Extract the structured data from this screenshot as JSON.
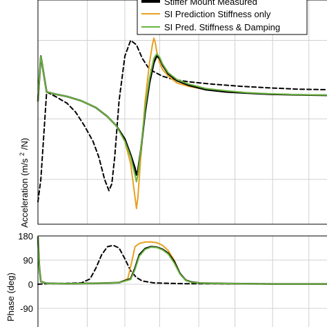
{
  "chart_data": [
    {
      "type": "line",
      "title": "",
      "xlabel": "",
      "ylabel": "Acceleration (m/s²/N)",
      "ylabel_top": "(m/s",
      "ylabel_sup": "2",
      "ylabel_bottom": "/N)",
      "ylabel_start": "Acceleration ",
      "yscale": "log",
      "grid": true,
      "legend_placement": "top-right",
      "xlim": [
        0,
        1
      ],
      "ylim": [
        0,
        1
      ],
      "series": [
        {
          "name": "Stiffer Mount Measured",
          "color": "#000000",
          "style": "solid",
          "x": [
            0.0,
            0.01,
            0.03,
            0.06,
            0.1,
            0.15,
            0.2,
            0.24,
            0.27,
            0.3,
            0.32,
            0.335,
            0.34,
            0.345,
            0.355,
            0.37,
            0.385,
            0.4,
            0.41,
            0.42,
            0.43,
            0.45,
            0.48,
            0.52,
            0.58,
            0.65,
            0.72,
            0.8,
            0.9,
            1.0
          ],
          "y": [
            0.55,
            0.75,
            0.59,
            0.58,
            0.57,
            0.55,
            0.52,
            0.48,
            0.44,
            0.38,
            0.31,
            0.25,
            0.22,
            0.24,
            0.33,
            0.5,
            0.63,
            0.72,
            0.75,
            0.74,
            0.71,
            0.67,
            0.64,
            0.62,
            0.6,
            0.59,
            0.585,
            0.58,
            0.577,
            0.575
          ]
        },
        {
          "name": "SI Prediction Stiffness only",
          "color": "#e8a020",
          "style": "solid",
          "x": [
            0.0,
            0.01,
            0.03,
            0.06,
            0.1,
            0.15,
            0.2,
            0.24,
            0.27,
            0.3,
            0.32,
            0.335,
            0.34,
            0.345,
            0.355,
            0.37,
            0.385,
            0.395,
            0.4,
            0.405,
            0.41,
            0.42,
            0.43,
            0.45,
            0.48,
            0.52,
            0.58,
            0.65,
            0.72,
            0.8,
            0.9,
            1.0
          ],
          "y": [
            0.55,
            0.75,
            0.59,
            0.58,
            0.57,
            0.55,
            0.52,
            0.48,
            0.44,
            0.37,
            0.27,
            0.12,
            0.07,
            0.12,
            0.3,
            0.55,
            0.72,
            0.8,
            0.83,
            0.81,
            0.77,
            0.72,
            0.69,
            0.66,
            0.63,
            0.615,
            0.6,
            0.59,
            0.585,
            0.58,
            0.577,
            0.575
          ]
        },
        {
          "name": "SI Pred. Stiffness & Damping",
          "color": "#6ab33e",
          "style": "solid",
          "x": [
            0.0,
            0.01,
            0.03,
            0.06,
            0.1,
            0.15,
            0.2,
            0.24,
            0.27,
            0.3,
            0.32,
            0.335,
            0.34,
            0.345,
            0.355,
            0.37,
            0.385,
            0.4,
            0.41,
            0.42,
            0.43,
            0.45,
            0.48,
            0.52,
            0.58,
            0.65,
            0.72,
            0.8,
            0.9,
            1.0
          ],
          "y": [
            0.55,
            0.75,
            0.59,
            0.58,
            0.57,
            0.55,
            0.52,
            0.48,
            0.44,
            0.37,
            0.3,
            0.22,
            0.19,
            0.22,
            0.33,
            0.52,
            0.65,
            0.74,
            0.76,
            0.745,
            0.715,
            0.675,
            0.645,
            0.625,
            0.605,
            0.595,
            0.587,
            0.582,
            0.578,
            0.576
          ]
        },
        {
          "name": "",
          "color": "#000000",
          "style": "dashed",
          "x": [
            0.0,
            0.01,
            0.03,
            0.06,
            0.1,
            0.13,
            0.16,
            0.19,
            0.21,
            0.23,
            0.245,
            0.255,
            0.265,
            0.28,
            0.3,
            0.32,
            0.34,
            0.36,
            0.38,
            0.4,
            0.43,
            0.47,
            0.52,
            0.6,
            0.7,
            0.8,
            0.9,
            1.0
          ],
          "y": [
            0.1,
            0.2,
            0.59,
            0.57,
            0.54,
            0.5,
            0.44,
            0.37,
            0.3,
            0.2,
            0.15,
            0.18,
            0.3,
            0.55,
            0.75,
            0.82,
            0.8,
            0.74,
            0.7,
            0.68,
            0.66,
            0.645,
            0.635,
            0.625,
            0.615,
            0.608,
            0.602,
            0.6
          ]
        }
      ]
    },
    {
      "type": "line",
      "title": "",
      "xlabel": "",
      "ylabel": "Phase (deg)",
      "grid": true,
      "ylim": [
        -180,
        180
      ],
      "yticks": [
        "180",
        "90",
        "0",
        "-90"
      ],
      "ytick_values": [
        180,
        90,
        0,
        -90
      ],
      "series": [
        {
          "name": "Stiffer Mount Measured",
          "color": "#000000",
          "style": "solid",
          "x": [
            0.0,
            0.005,
            0.01,
            0.03,
            0.1,
            0.2,
            0.28,
            0.32,
            0.335,
            0.35,
            0.37,
            0.39,
            0.41,
            0.43,
            0.45,
            0.47,
            0.49,
            0.51,
            0.53,
            0.56,
            0.6,
            0.7,
            0.8,
            1.0
          ],
          "y": [
            175,
            60,
            10,
            3,
            2,
            3,
            6,
            20,
            60,
            110,
            133,
            140,
            138,
            130,
            115,
            85,
            40,
            15,
            8,
            4,
            3,
            2,
            1,
            1
          ]
        },
        {
          "name": "SI Prediction Stiffness only",
          "color": "#e8a020",
          "style": "solid",
          "x": [
            0.0,
            0.005,
            0.01,
            0.03,
            0.1,
            0.2,
            0.28,
            0.31,
            0.325,
            0.335,
            0.35,
            0.37,
            0.39,
            0.41,
            0.43,
            0.45,
            0.47,
            0.49,
            0.51,
            0.53,
            0.56,
            0.6,
            0.7,
            0.8,
            1.0
          ],
          "y": [
            175,
            60,
            10,
            3,
            2,
            3,
            6,
            20,
            90,
            140,
            152,
            157,
            158,
            155,
            145,
            125,
            90,
            40,
            15,
            8,
            4,
            3,
            2,
            1,
            1
          ]
        },
        {
          "name": "SI Pred. Stiffness & Damping",
          "color": "#6ab33e",
          "style": "solid",
          "x": [
            0.0,
            0.005,
            0.01,
            0.03,
            0.1,
            0.2,
            0.28,
            0.32,
            0.335,
            0.35,
            0.37,
            0.39,
            0.41,
            0.43,
            0.45,
            0.47,
            0.49,
            0.51,
            0.53,
            0.56,
            0.6,
            0.7,
            0.8,
            1.0
          ],
          "y": [
            175,
            60,
            10,
            3,
            2,
            3,
            6,
            18,
            55,
            105,
            130,
            138,
            137,
            128,
            112,
            80,
            38,
            14,
            7,
            4,
            3,
            2,
            1,
            1
          ]
        },
        {
          "name": "",
          "color": "#000000",
          "style": "dashed",
          "x": [
            0.0,
            0.03,
            0.1,
            0.15,
            0.18,
            0.2,
            0.22,
            0.24,
            0.26,
            0.28,
            0.3,
            0.32,
            0.34,
            0.36,
            0.4,
            0.5,
            1.0
          ],
          "y": [
            0,
            2,
            3,
            5,
            20,
            60,
            110,
            140,
            145,
            135,
            95,
            50,
            25,
            12,
            5,
            2,
            1
          ]
        }
      ]
    }
  ]
}
